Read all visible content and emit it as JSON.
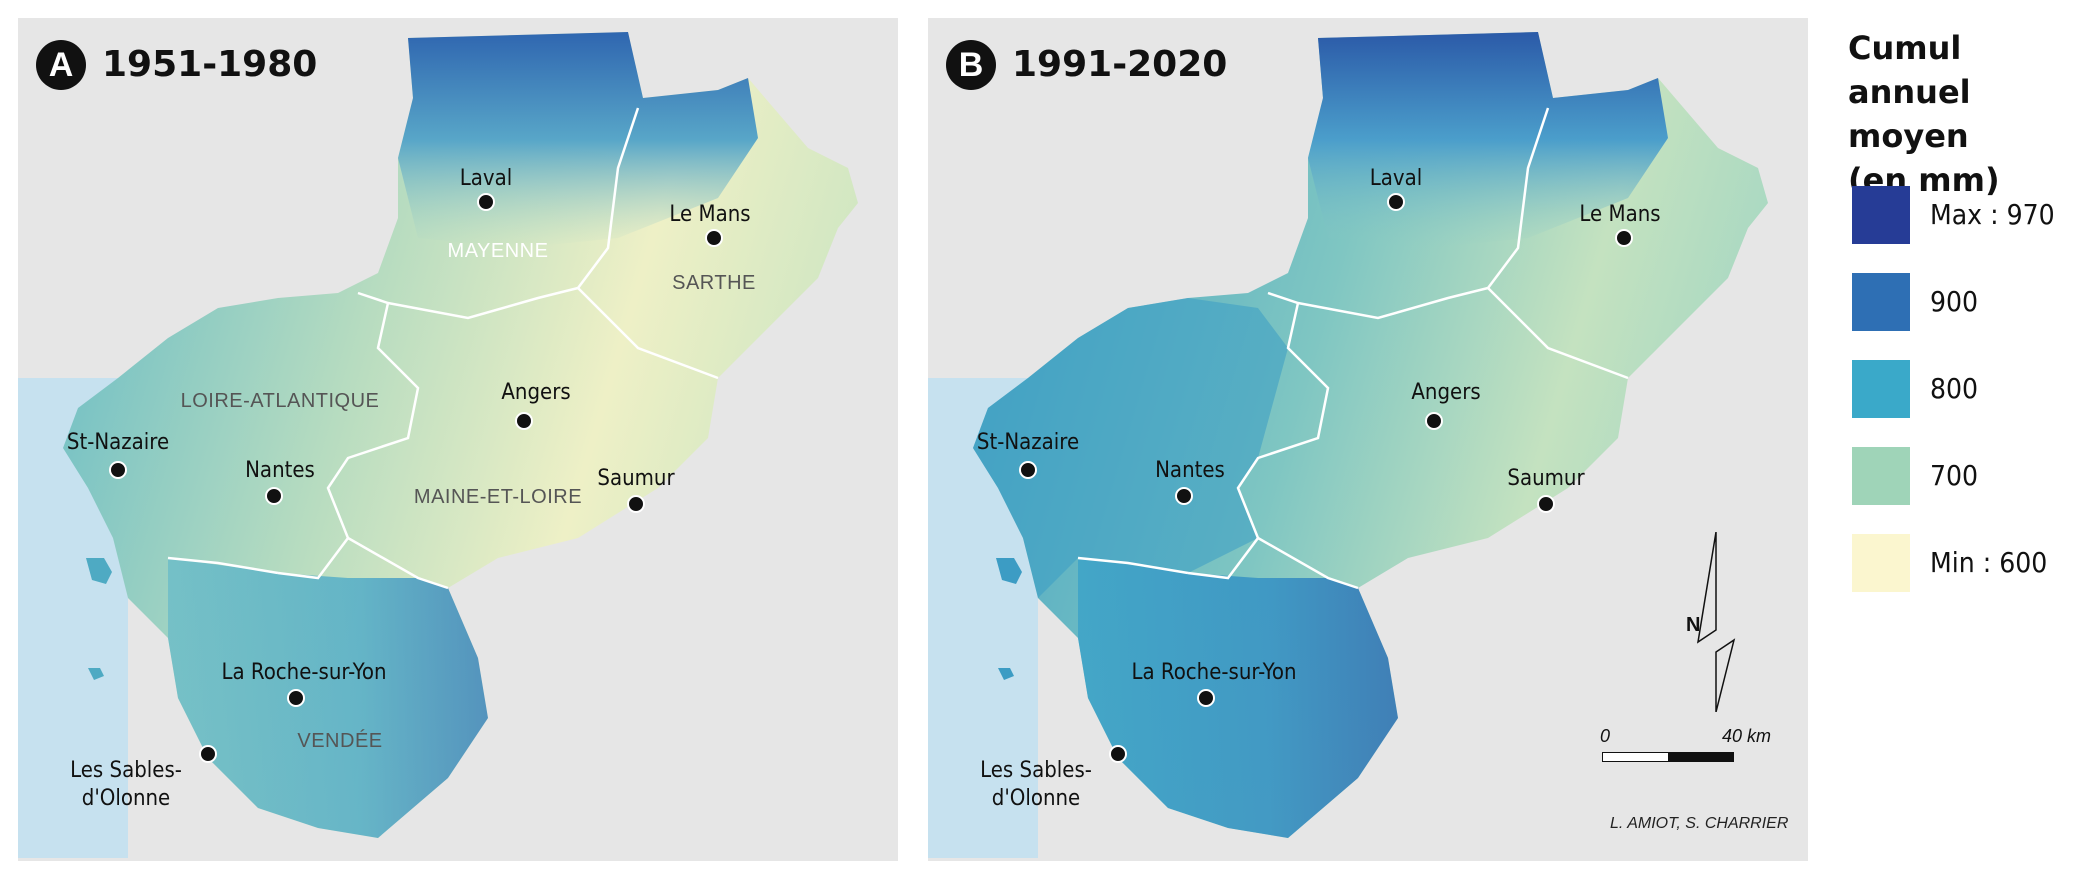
{
  "panels": [
    {
      "badge": "A",
      "period": "1951-1980",
      "cities": [
        "Laval",
        "Le Mans",
        "Angers",
        "St-Nazaire",
        "Nantes",
        "Saumur",
        "La Roche-sur-Yon",
        "Les Sables-",
        "d'Olonne"
      ],
      "departments": [
        "MAYENNE",
        "SARTHE",
        "LOIRE-ATLANTIQUE",
        "MAINE-ET-LOIRE",
        "VENDÉE"
      ]
    },
    {
      "badge": "B",
      "period": "1991-2020",
      "cities": [
        "Laval",
        "Le Mans",
        "Angers",
        "St-Nazaire",
        "Nantes",
        "Saumur",
        "La Roche-sur-Yon",
        "Les Sables-",
        "d'Olonne"
      ]
    }
  ],
  "legend": {
    "title_lines": [
      "Cumul annuel",
      "moyen",
      "(en mm)"
    ],
    "items": [
      {
        "label": "Max : 970",
        "color": "#263c96"
      },
      {
        "label": "900",
        "color": "#2e6fb4"
      },
      {
        "label": "800",
        "color": "#3aa9c9"
      },
      {
        "label": "700",
        "color": "#9fd4b8"
      },
      {
        "label": "Min : 600",
        "color": "#fbf6cf"
      }
    ]
  },
  "scale": {
    "start": "0",
    "end": "40 km"
  },
  "north": "N",
  "credit": "L. AMIOT, S. CHARRIER"
}
